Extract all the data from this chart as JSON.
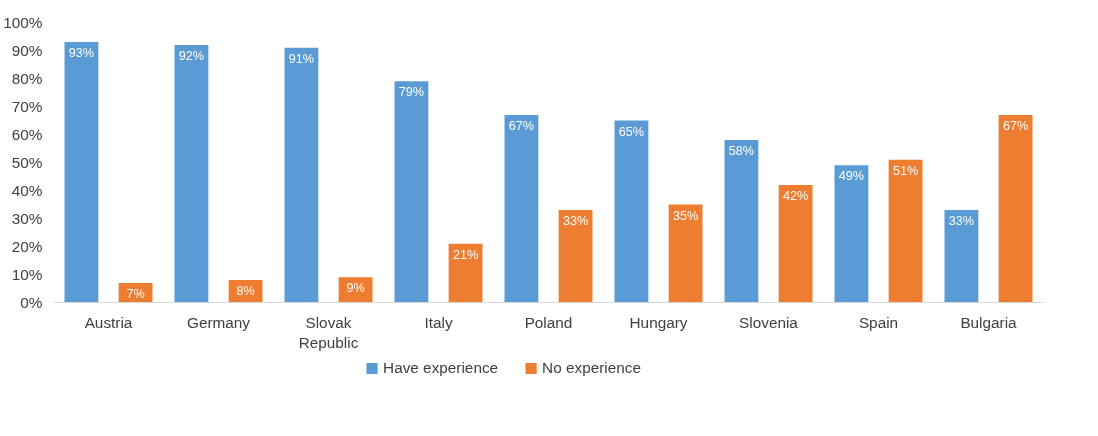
{
  "chart_data": {
    "type": "bar",
    "categories": [
      "Austria",
      "Germany",
      "Slovak Republic",
      "Italy",
      "Poland",
      "Hungary",
      "Slovenia",
      "Spain",
      "Bulgaria"
    ],
    "series": [
      {
        "name": "Have experience",
        "color": "#5b9bd5",
        "values": [
          93,
          92,
          91,
          79,
          67,
          65,
          58,
          49,
          33
        ],
        "value_labels": [
          "93%",
          "92%",
          "91%",
          "79%",
          "67%",
          "65%",
          "58%",
          "49%",
          "33%"
        ]
      },
      {
        "name": "No experience",
        "color": "#ed7d31",
        "values": [
          7,
          8,
          9,
          21,
          33,
          35,
          42,
          51,
          67
        ],
        "value_labels": [
          "7%",
          "8%",
          "9%",
          "21%",
          "33%",
          "35%",
          "42%",
          "51%",
          "67%"
        ]
      }
    ],
    "ylim": [
      0,
      100
    ],
    "yticks": [
      {
        "value": 0,
        "label": "0%"
      },
      {
        "value": 10,
        "label": "10%"
      },
      {
        "value": 20,
        "label": "20%"
      },
      {
        "value": 30,
        "label": "30%"
      },
      {
        "value": 40,
        "label": "40%"
      },
      {
        "value": 50,
        "label": "50%"
      },
      {
        "value": 60,
        "label": "60%"
      },
      {
        "value": 70,
        "label": "70%"
      },
      {
        "value": 80,
        "label": "80%"
      },
      {
        "value": 90,
        "label": "90%"
      },
      {
        "value": 100,
        "label": "100%"
      }
    ],
    "legend": "bottom",
    "grid": false
  }
}
